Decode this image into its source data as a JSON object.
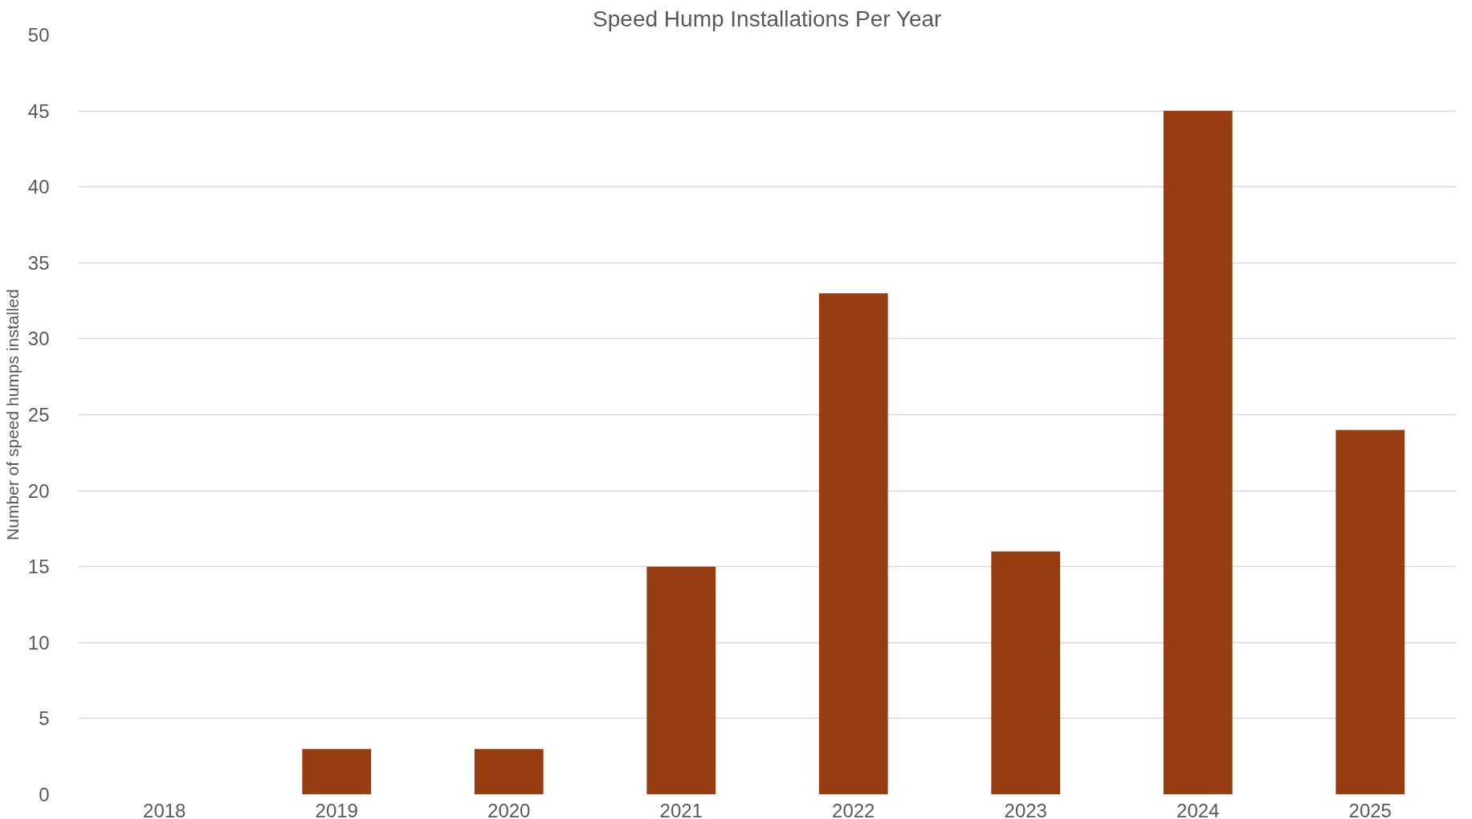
{
  "chart_data": {
    "type": "bar",
    "title": "Speed Hump Installations Per Year",
    "ylabel": "Number of speed humps installed",
    "categories": [
      "2018",
      "2019",
      "2020",
      "2021",
      "2022",
      "2023",
      "2024",
      "2025"
    ],
    "values": [
      0,
      3,
      3,
      15,
      33,
      16,
      45,
      24
    ],
    "color": "#963e11",
    "ylim": [
      0,
      50
    ],
    "yticks": [
      0,
      5,
      10,
      15,
      20,
      25,
      30,
      35,
      40,
      45,
      50
    ],
    "grid": "y"
  }
}
